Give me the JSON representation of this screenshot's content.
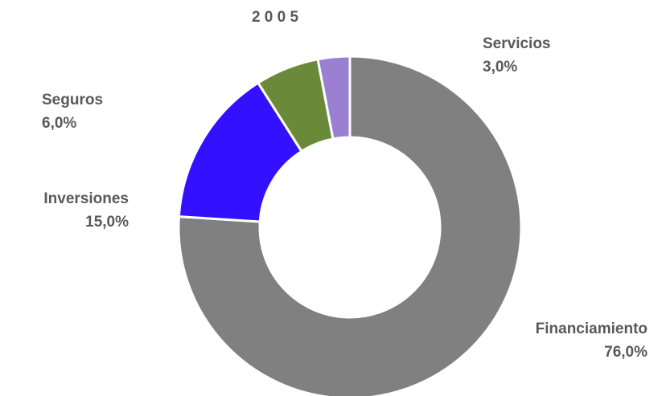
{
  "chart_data": {
    "type": "pie",
    "title": "2 0 0 5",
    "categories": [
      "Financiamiento",
      "Inversiones",
      "Seguros",
      "Servicios"
    ],
    "values": [
      76,
      15,
      6,
      3
    ],
    "value_labels": [
      "76,0%",
      "15,0%",
      "6,0%",
      "3,0%"
    ],
    "colors": [
      "#808080",
      "#3311ff",
      "#6a8a3a",
      "#9b80d2"
    ]
  }
}
